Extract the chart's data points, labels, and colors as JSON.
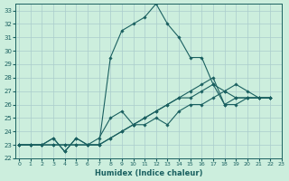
{
  "xlabel": "Humidex (Indice chaleur)",
  "bg_color": "#cceedd",
  "grid_color": "#aacccc",
  "line_color": "#1a6060",
  "xlim": [
    -0.3,
    23
  ],
  "ylim": [
    22,
    33.5
  ],
  "yticks": [
    22,
    23,
    24,
    25,
    26,
    27,
    28,
    29,
    30,
    31,
    32,
    33
  ],
  "xticks": [
    0,
    1,
    2,
    3,
    4,
    5,
    6,
    7,
    8,
    9,
    10,
    11,
    12,
    13,
    14,
    15,
    16,
    17,
    18,
    19,
    20,
    21,
    22,
    23
  ],
  "x_points": [
    0,
    1,
    2,
    3,
    4,
    5,
    6,
    7,
    8,
    9,
    10,
    11,
    12,
    13,
    14,
    15,
    16,
    17,
    18,
    19,
    20,
    21,
    22
  ],
  "series": [
    [
      23.0,
      23.0,
      23.0,
      23.5,
      22.5,
      23.5,
      23.0,
      23.0,
      29.5,
      31.5,
      32.0,
      32.5,
      33.5,
      32.0,
      31.0,
      29.5,
      29.5,
      27.5,
      27.0,
      26.5,
      26.5,
      26.5,
      26.5
    ],
    [
      23.0,
      23.0,
      23.0,
      23.5,
      22.5,
      23.5,
      23.0,
      23.5,
      25.0,
      25.5,
      24.5,
      24.5,
      25.0,
      24.5,
      25.5,
      26.0,
      26.0,
      26.5,
      27.0,
      27.5,
      27.0,
      26.5,
      26.5
    ],
    [
      23.0,
      23.0,
      23.0,
      23.0,
      23.0,
      23.0,
      23.0,
      23.0,
      23.5,
      24.0,
      24.5,
      25.0,
      25.5,
      26.0,
      26.5,
      27.0,
      27.5,
      28.0,
      26.0,
      26.5,
      26.5,
      26.5,
      26.5
    ],
    [
      23.0,
      23.0,
      23.0,
      23.0,
      23.0,
      23.0,
      23.0,
      23.0,
      23.5,
      24.0,
      24.5,
      25.0,
      25.5,
      26.0,
      26.5,
      26.5,
      27.0,
      27.5,
      26.0,
      26.0,
      26.5,
      26.5,
      26.5
    ]
  ]
}
